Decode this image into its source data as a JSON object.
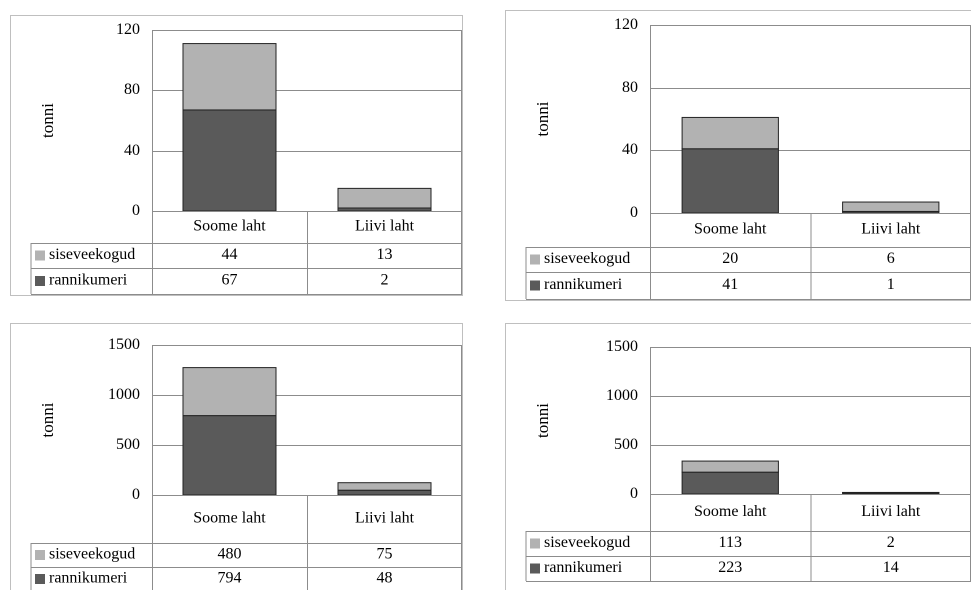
{
  "colors": {
    "siseveekogud": "#b2b2b2",
    "rannikumeri": "#5a5a5a"
  },
  "chart_data": [
    {
      "type": "bar",
      "stacked": true,
      "categories": [
        "Soome laht",
        "Liivi laht"
      ],
      "series": [
        {
          "name": "siseveekogud",
          "values": [
            44,
            13
          ]
        },
        {
          "name": "rannikumeri",
          "values": [
            67,
            2
          ]
        }
      ],
      "ylabel": "tonni",
      "ylim": [
        0,
        120
      ],
      "yticks": [
        0,
        40,
        80,
        120
      ],
      "grid": true,
      "data_table": true
    },
    {
      "type": "bar",
      "stacked": true,
      "categories": [
        "Soome laht",
        "Liivi laht"
      ],
      "series": [
        {
          "name": "siseveekogud",
          "values": [
            20,
            6
          ]
        },
        {
          "name": "rannikumeri",
          "values": [
            41,
            1
          ]
        }
      ],
      "ylabel": "tonni",
      "ylim": [
        0,
        120
      ],
      "yticks": [
        0,
        40,
        80,
        120
      ],
      "grid": true,
      "data_table": true
    },
    {
      "type": "bar",
      "stacked": true,
      "categories": [
        "Soome laht",
        "Liivi laht"
      ],
      "series": [
        {
          "name": "siseveekogud",
          "values": [
            480,
            75
          ]
        },
        {
          "name": "rannikumeri",
          "values": [
            794,
            48
          ]
        }
      ],
      "ylabel": "tonni",
      "ylim": [
        0,
        1500
      ],
      "yticks": [
        0,
        500,
        1000,
        1500
      ],
      "grid": true,
      "data_table": true
    },
    {
      "type": "bar",
      "stacked": true,
      "categories": [
        "Soome laht",
        "Liivi laht"
      ],
      "series": [
        {
          "name": "siseveekogud",
          "values": [
            113,
            2
          ]
        },
        {
          "name": "rannikumeri",
          "values": [
            223,
            14
          ]
        }
      ],
      "ylabel": "tonni",
      "ylim": [
        0,
        1500
      ],
      "yticks": [
        0,
        500,
        1000,
        1500
      ],
      "grid": true,
      "data_table": true
    }
  ]
}
